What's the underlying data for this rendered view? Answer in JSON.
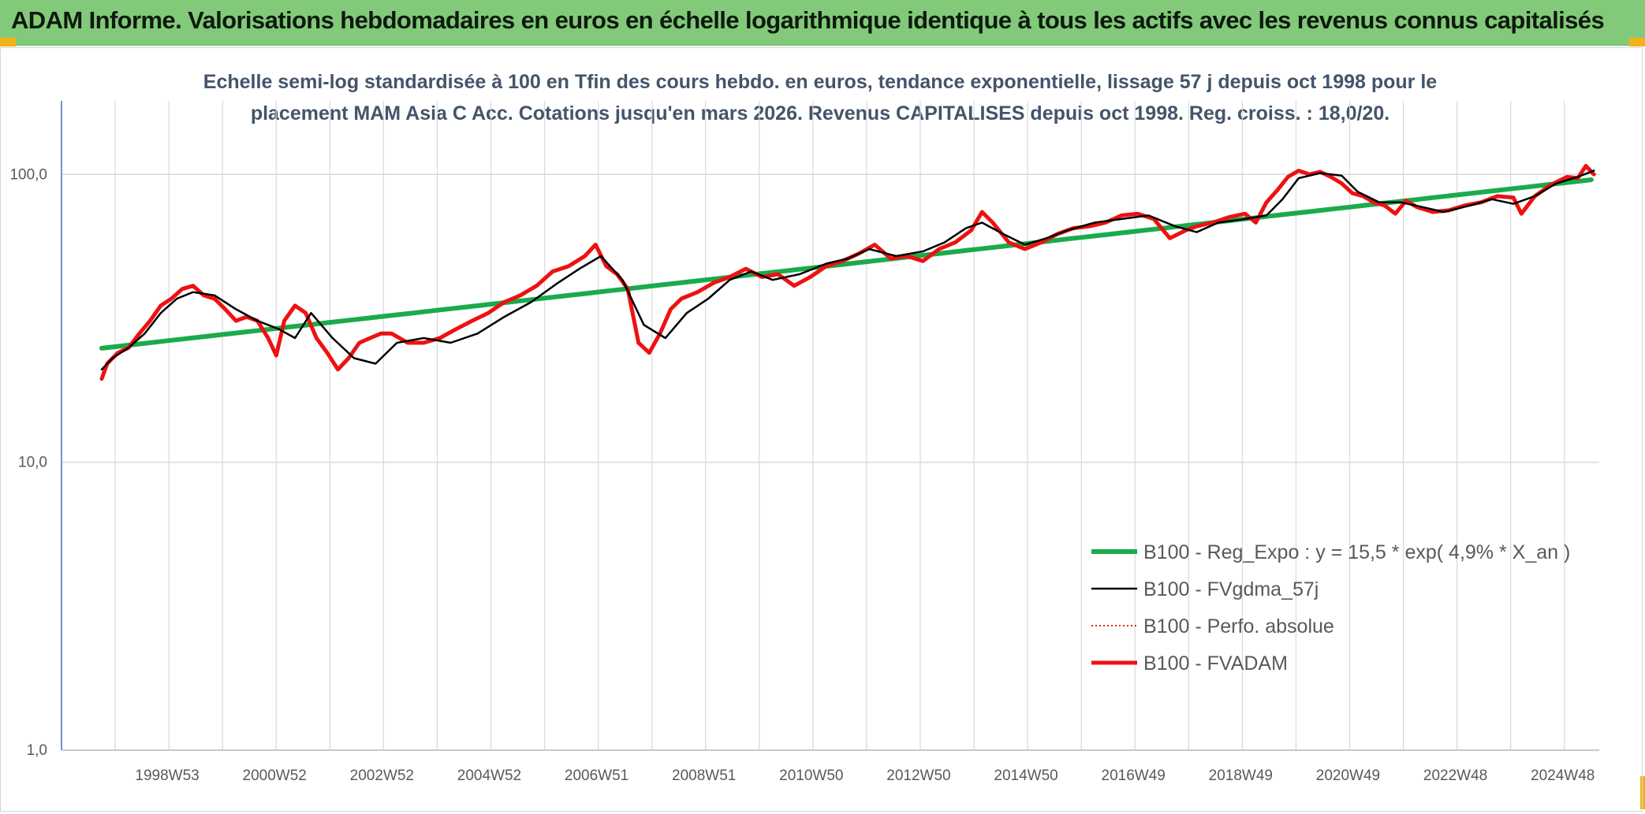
{
  "title": "ADAM Informe. Valorisations hebdomadaires en euros en échelle logarithmique identique à tous les actifs avec les revenus connus capitalisés",
  "subtitle_lines": [
    "Echelle semi-log standardisée à 100 en Tfin des cours hebdo. en euros, tendance exponentielle, lissage 57 j depuis oct 1998 pour le",
    "placement MAM Asia C Acc. Cotations jusqu'en mars 2026. Revenus CAPITALISES depuis oct 1998. Reg. croiss. : 18,0/20."
  ],
  "colors": {
    "title_bg": "#82c97a",
    "subtitle": "#44546a",
    "regression": "#1aab4b",
    "fvgdma": "#000000",
    "perfo": "#e0251b",
    "fvadam": "#ee1111",
    "grid": "#d9d9d9",
    "y_axis": "#4472c4",
    "corner": "#f2b21a"
  },
  "chart_data": {
    "type": "line",
    "y_scale": "log10",
    "ylim": [
      1,
      180
    ],
    "y_ticks": [
      {
        "value": 1,
        "label": "1,0"
      },
      {
        "value": 10,
        "label": "10,0"
      },
      {
        "value": 100,
        "label": "100,0"
      }
    ],
    "xlim": [
      1997.75,
      2026.4
    ],
    "x_ticks": [
      {
        "value": 1998.75,
        "label": "1998W53"
      },
      {
        "value": 2000.75,
        "label": "2000W52"
      },
      {
        "value": 2002.75,
        "label": "2002W52"
      },
      {
        "value": 2004.75,
        "label": "2004W52"
      },
      {
        "value": 2006.75,
        "label": "2006W51"
      },
      {
        "value": 2008.75,
        "label": "2008W51"
      },
      {
        "value": 2010.75,
        "label": "2010W50"
      },
      {
        "value": 2012.75,
        "label": "2012W50"
      },
      {
        "value": 2014.75,
        "label": "2014W50"
      },
      {
        "value": 2016.75,
        "label": "2016W49"
      },
      {
        "value": 2018.75,
        "label": "2018W49"
      },
      {
        "value": 2020.75,
        "label": "2020W49"
      },
      {
        "value": 2022.75,
        "label": "2022W48"
      },
      {
        "value": 2024.75,
        "label": "2024W48"
      }
    ],
    "grid": {
      "vertical": true,
      "horizontal": true
    },
    "legend_position": "bottom-right",
    "series": [
      {
        "name": "B100 - Reg_Expo : y = 15,5 * exp( 4,9% *  X_an )",
        "style": "thick",
        "x": [
          1998.5,
          2026.3
        ],
        "y": [
          24.9,
          96.0
        ]
      },
      {
        "name": "B100 - FVgdma_57j",
        "style": "thin",
        "x": [
          1998.5,
          1998.7,
          1999.0,
          1999.3,
          1999.6,
          1999.9,
          2000.2,
          2000.6,
          2001.0,
          2001.4,
          2001.8,
          2002.1,
          2002.4,
          2002.8,
          2003.2,
          2003.6,
          2004.0,
          2004.5,
          2005.0,
          2005.5,
          2006.0,
          2006.5,
          2007.0,
          2007.4,
          2007.8,
          2008.2,
          2008.6,
          2009.0,
          2009.4,
          2009.8,
          2010.2,
          2010.6,
          2011.0,
          2011.5,
          2012.0,
          2012.4,
          2012.8,
          2013.3,
          2013.8,
          2014.2,
          2014.6,
          2014.9,
          2015.3,
          2015.7,
          2016.1,
          2016.5,
          2017.0,
          2017.5,
          2018.0,
          2018.5,
          2018.9,
          2019.3,
          2019.8,
          2020.2,
          2020.5,
          2020.8,
          2021.2,
          2021.6,
          2021.9,
          2022.3,
          2022.7,
          2023.1,
          2023.5,
          2024.0,
          2024.4,
          2024.8,
          2025.2,
          2025.6,
          2026.0,
          2026.3
        ],
        "y": [
          21,
          23,
          25,
          28,
          33,
          37,
          39,
          38,
          34,
          31,
          29,
          27,
          33,
          27,
          23,
          22,
          26,
          27,
          26,
          28,
          32,
          36,
          42,
          47,
          52,
          43,
          30,
          27,
          33,
          37,
          43,
          46,
          43,
          45,
          49,
          51,
          55,
          52,
          54,
          58,
          65,
          68,
          62,
          57,
          60,
          64,
          68,
          70,
          72,
          66,
          63,
          68,
          70,
          72,
          82,
          97,
          101,
          99,
          87,
          80,
          80,
          77,
          74,
          78,
          82,
          79,
          84,
          93,
          98,
          103
        ]
      },
      {
        "name": "B100 - Perfo. absolue",
        "style": "dotted",
        "x": [],
        "y": []
      },
      {
        "name": "B100 - FVADAM",
        "style": "thick",
        "x": [
          1998.5,
          1998.6,
          1998.8,
          1999.0,
          1999.2,
          1999.4,
          1999.6,
          1999.8,
          2000.0,
          2000.2,
          2000.4,
          2000.6,
          2000.8,
          2001.0,
          2001.2,
          2001.4,
          2001.6,
          2001.75,
          2001.9,
          2002.1,
          2002.3,
          2002.5,
          2002.7,
          2002.9,
          2003.1,
          2003.3,
          2003.5,
          2003.7,
          2003.9,
          2004.2,
          2004.5,
          2004.8,
          2005.1,
          2005.4,
          2005.7,
          2006.0,
          2006.3,
          2006.6,
          2006.9,
          2007.2,
          2007.5,
          2007.7,
          2007.9,
          2008.1,
          2008.3,
          2008.5,
          2008.7,
          2008.9,
          2009.1,
          2009.3,
          2009.6,
          2009.9,
          2010.2,
          2010.5,
          2010.8,
          2011.1,
          2011.4,
          2011.7,
          2012.0,
          2012.3,
          2012.6,
          2012.9,
          2013.2,
          2013.5,
          2013.8,
          2014.1,
          2014.4,
          2014.7,
          2014.9,
          2015.1,
          2015.4,
          2015.7,
          2016.0,
          2016.3,
          2016.6,
          2016.9,
          2017.2,
          2017.5,
          2017.8,
          2018.1,
          2018.4,
          2018.7,
          2018.9,
          2019.2,
          2019.5,
          2019.8,
          2020.0,
          2020.2,
          2020.4,
          2020.6,
          2020.8,
          2021.0,
          2021.2,
          2021.4,
          2021.6,
          2021.8,
          2022.0,
          2022.2,
          2022.4,
          2022.6,
          2022.8,
          2023.0,
          2023.3,
          2023.6,
          2023.9,
          2024.2,
          2024.5,
          2024.8,
          2024.95,
          2025.2,
          2025.5,
          2025.8,
          2026.0,
          2026.15,
          2026.3
        ],
        "y": [
          19.5,
          22,
          24,
          25,
          28,
          31,
          35,
          37,
          40,
          41,
          38,
          37,
          34,
          31,
          32,
          31,
          27,
          23.5,
          31,
          35,
          33,
          27,
          24,
          21,
          23,
          26,
          27,
          28,
          28,
          26,
          26,
          27,
          29,
          31,
          33,
          36,
          38,
          41,
          46,
          48,
          52,
          57,
          48,
          45,
          40,
          26,
          24,
          28,
          34,
          37,
          39,
          42,
          44,
          47,
          44,
          45,
          41,
          44,
          48,
          50,
          53,
          57,
          51,
          52,
          50,
          55,
          58,
          64,
          74,
          68,
          58,
          55,
          58,
          62,
          65,
          66,
          68,
          72,
          73,
          70,
          60,
          64,
          66,
          68,
          71,
          73,
          68,
          80,
          88,
          98,
          103,
          100,
          102,
          98,
          93,
          86,
          84,
          80,
          78,
          73,
          81,
          77,
          74,
          75,
          78,
          80,
          84,
          83,
          73,
          84,
          92,
          98,
          97,
          107,
          100
        ]
      }
    ]
  }
}
